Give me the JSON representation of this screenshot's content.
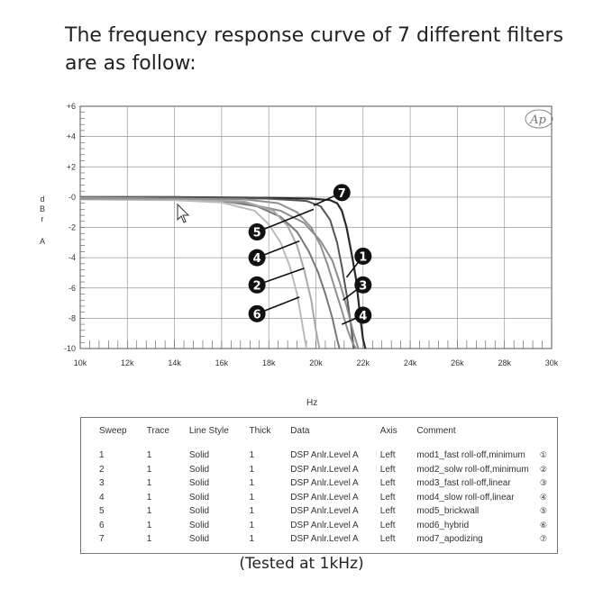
{
  "heading": "The frequency response curve of 7 different filters are as follow:",
  "caption": "(Tested at 1kHz)",
  "chart_data": {
    "type": "line",
    "title": "",
    "xlabel": "Hz",
    "ylabel": "dBr A",
    "xlim": [
      10000,
      30000
    ],
    "ylim": [
      -10,
      6
    ],
    "x_ticks": [
      "10k",
      "12k",
      "14k",
      "16k",
      "18k",
      "20k",
      "22k",
      "24k",
      "26k",
      "28k",
      "30k"
    ],
    "y_ticks": [
      "+6",
      "+4",
      "+2",
      "-0",
      "-2",
      "-4",
      "-6",
      "-8",
      "-10"
    ],
    "grid": true,
    "logo": "Ap",
    "series": [
      {
        "id": "1",
        "color": "#2a2a2a",
        "x": [
          10000,
          14000,
          18000,
          19800,
          20600,
          20900,
          21100,
          21300,
          21500,
          21700,
          21800,
          21900,
          22000,
          22100
        ],
        "y": [
          0.0,
          0.0,
          -0.05,
          -0.1,
          -0.2,
          -0.4,
          -0.9,
          -2.0,
          -3.6,
          -5.4,
          -6.8,
          -8.2,
          -9.4,
          -10
        ]
      },
      {
        "id": "2",
        "color": "#777777",
        "x": [
          10000,
          14000,
          16000,
          17500,
          18500,
          19200,
          19700,
          20100,
          20400,
          20700,
          20900,
          21000
        ],
        "y": [
          -0.05,
          -0.1,
          -0.25,
          -0.6,
          -1.3,
          -2.3,
          -3.6,
          -5.0,
          -6.4,
          -8.0,
          -9.4,
          -10
        ]
      },
      {
        "id": "3",
        "color": "#555555",
        "x": [
          10000,
          14000,
          18000,
          19600,
          20200,
          20600,
          20900,
          21100,
          21300,
          21500,
          21600
        ],
        "y": [
          0.0,
          0.0,
          -0.1,
          -0.25,
          -0.6,
          -1.5,
          -3.0,
          -4.6,
          -6.4,
          -8.6,
          -10
        ]
      },
      {
        "id": "4",
        "color": "#8c8c8c",
        "x": [
          10000,
          14000,
          17000,
          18500,
          19500,
          20200,
          20700,
          21000,
          21300,
          21600,
          21800
        ],
        "y": [
          -0.05,
          -0.1,
          -0.4,
          -0.9,
          -1.7,
          -2.9,
          -4.2,
          -5.6,
          -7.2,
          -9.0,
          -10
        ]
      },
      {
        "id": "5",
        "color": "#a8a8a8",
        "x": [
          10000,
          14000,
          17000,
          18200,
          18800,
          19200,
          19500,
          19800,
          20000,
          20150
        ],
        "y": [
          -0.05,
          -0.1,
          -0.3,
          -0.9,
          -1.9,
          -3.2,
          -4.8,
          -6.8,
          -8.8,
          -10
        ]
      },
      {
        "id": "6",
        "color": "#bbbbbb",
        "x": [
          10000,
          14000,
          16000,
          17400,
          18000,
          18500,
          18900,
          19200,
          19400,
          19600
        ],
        "y": [
          -0.15,
          -0.2,
          -0.35,
          -0.9,
          -1.8,
          -3.0,
          -4.6,
          -6.4,
          -8.2,
          -10
        ]
      },
      {
        "id": "7",
        "color": "#909090",
        "x": [
          10000,
          14000,
          17000,
          18400,
          19200,
          19800,
          20200,
          20500,
          20800,
          21100,
          21350,
          21550,
          21700
        ],
        "y": [
          -0.1,
          -0.1,
          -0.15,
          -0.4,
          -1.0,
          -2.0,
          -3.2,
          -4.5,
          -6.0,
          -7.5,
          -8.8,
          -9.6,
          -10
        ]
      }
    ],
    "callouts": [
      {
        "label": "7",
        "tip": [
          19900,
          -0.55
        ],
        "badge": [
          21100,
          0.3
        ]
      },
      {
        "label": "5",
        "tip": [
          19900,
          -0.8
        ],
        "badge": [
          17500,
          -2.3
        ]
      },
      {
        "label": "1",
        "tip": [
          21300,
          -5.3
        ],
        "badge": [
          22000,
          -3.9
        ]
      },
      {
        "label": "4",
        "tip": [
          19300,
          -2.9
        ],
        "badge": [
          17500,
          -4.0
        ]
      },
      {
        "label": "3",
        "tip": [
          21150,
          -6.8
        ],
        "badge": [
          22000,
          -5.8
        ]
      },
      {
        "label": "2",
        "tip": [
          19500,
          -4.7
        ],
        "badge": [
          17500,
          -5.8
        ]
      },
      {
        "label": "4",
        "tip": [
          21100,
          -8.4
        ],
        "badge": [
          22000,
          -7.8
        ]
      },
      {
        "label": "6",
        "tip": [
          19300,
          -6.6
        ],
        "badge": [
          17500,
          -7.7
        ]
      }
    ]
  },
  "legend_table": {
    "headers": [
      "Sweep",
      "Trace",
      "Line Style",
      "Thick",
      "Data",
      "Axis",
      "Comment"
    ],
    "rows": [
      {
        "sweep": "1",
        "trace": "1",
        "style": "Solid",
        "thick": "1",
        "data": "DSP Anlr.Level A",
        "axis": "Left",
        "comment": "mod1_fast roll-off,minimum",
        "mark": "①"
      },
      {
        "sweep": "2",
        "trace": "1",
        "style": "Solid",
        "thick": "1",
        "data": "DSP Anlr.Level A",
        "axis": "Left",
        "comment": "mod2_solw roll-off,minimum",
        "mark": "②"
      },
      {
        "sweep": "3",
        "trace": "1",
        "style": "Solid",
        "thick": "1",
        "data": "DSP Anlr.Level A",
        "axis": "Left",
        "comment": "mod3_fast roll-off,linear",
        "mark": "③"
      },
      {
        "sweep": "4",
        "trace": "1",
        "style": "Solid",
        "thick": "1",
        "data": "DSP Anlr.Level A",
        "axis": "Left",
        "comment": "mod4_slow roll-off,linear",
        "mark": "④"
      },
      {
        "sweep": "5",
        "trace": "1",
        "style": "Solid",
        "thick": "1",
        "data": "DSP Anlr.Level A",
        "axis": "Left",
        "comment": "mod5_brickwall",
        "mark": "⑤"
      },
      {
        "sweep": "6",
        "trace": "1",
        "style": "Solid",
        "thick": "1",
        "data": "DSP Anlr.Level A",
        "axis": "Left",
        "comment": "mod6_hybrid",
        "mark": "⑥"
      },
      {
        "sweep": "7",
        "trace": "1",
        "style": "Solid",
        "thick": "1",
        "data": "DSP Anlr.Level A",
        "axis": "Left",
        "comment": "mod7_apodizing",
        "mark": "⑦"
      }
    ]
  }
}
